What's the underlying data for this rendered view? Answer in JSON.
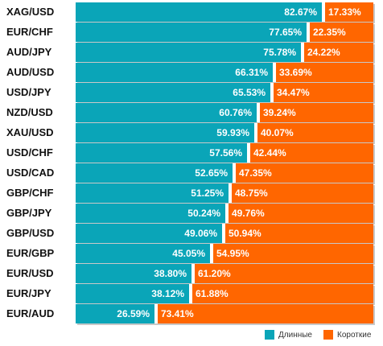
{
  "chart_data": {
    "type": "bar",
    "orientation": "horizontal",
    "stacked": true,
    "categories": [
      "XAG/USD",
      "EUR/CHF",
      "AUD/JPY",
      "AUD/USD",
      "USD/JPY",
      "NZD/USD",
      "XAU/USD",
      "USD/CHF",
      "USD/CAD",
      "GBP/CHF",
      "GBP/JPY",
      "GBP/USD",
      "EUR/GBP",
      "EUR/USD",
      "EUR/JPY",
      "EUR/AUD"
    ],
    "series": [
      {
        "name": "Длинные",
        "color": "#0aa5b8",
        "values": [
          82.67,
          77.65,
          75.78,
          66.31,
          65.53,
          60.76,
          59.93,
          57.56,
          52.65,
          51.25,
          50.24,
          49.06,
          45.05,
          38.8,
          38.12,
          26.59
        ],
        "labels": [
          "82.67%",
          "77.65%",
          "75.78%",
          "66.31%",
          "65.53%",
          "60.76%",
          "59.93%",
          "57.56%",
          "52.65%",
          "51.25%",
          "50.24%",
          "49.06%",
          "45.05%",
          "38.80%",
          "38.12%",
          "26.59%"
        ]
      },
      {
        "name": "Короткие",
        "color": "#ff6600",
        "values": [
          17.33,
          22.35,
          24.22,
          33.69,
          34.47,
          39.24,
          40.07,
          42.44,
          47.35,
          48.75,
          49.76,
          50.94,
          54.95,
          61.2,
          61.88,
          73.41
        ],
        "labels": [
          "17.33%",
          "22.35%",
          "24.22%",
          "33.69%",
          "34.47%",
          "39.24%",
          "40.07%",
          "42.44%",
          "47.35%",
          "48.75%",
          "49.76%",
          "50.94%",
          "54.95%",
          "61.20%",
          "61.88%",
          "73.41%"
        ]
      }
    ],
    "xlim": [
      0,
      100
    ],
    "grid": false,
    "legend_position": "bottom-right"
  }
}
